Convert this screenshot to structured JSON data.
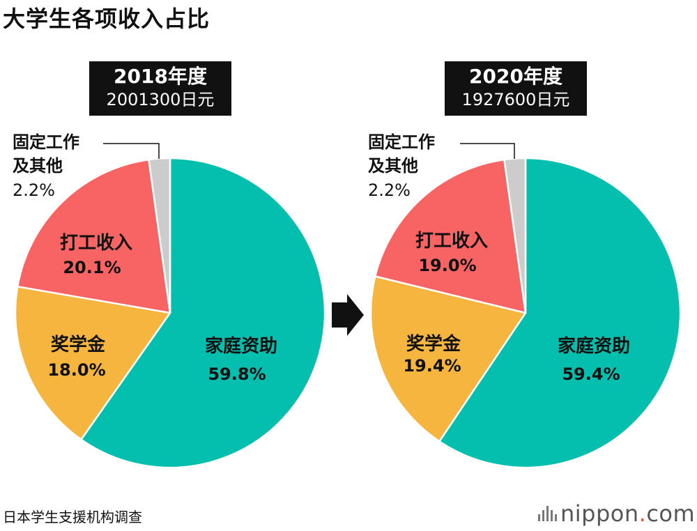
{
  "title": "大学生各项收入占比",
  "source": "日本学生支援机构调查",
  "brand": {
    "name": "nippon",
    "dot": ".",
    "tld": "com"
  },
  "colors": {
    "family_support": "#05bfae",
    "scholarship": "#f5b53f",
    "part_time": "#f86363",
    "other": "#cccccc",
    "box_bg": "#111111",
    "text": "#111111"
  },
  "arrow_icon": "right-arrow-icon",
  "chart_data": [
    {
      "type": "pie",
      "year": "2018年度",
      "total": "2001300日元",
      "slices": [
        {
          "label": "家庭资助",
          "value": 59.8,
          "pct_text": "59.8%",
          "color": "#05bfae"
        },
        {
          "label": "奖学金",
          "value": 18.0,
          "pct_text": "18.0%",
          "color": "#f5b53f"
        },
        {
          "label": "打工收入",
          "value": 20.1,
          "pct_text": "20.1%",
          "color": "#f86363"
        },
        {
          "label_line1": "固定工作",
          "label_line2": "及其他",
          "value": 2.2,
          "pct_text": "2.2%",
          "color": "#cccccc"
        }
      ]
    },
    {
      "type": "pie",
      "year": "2020年度",
      "total": "1927600日元",
      "slices": [
        {
          "label": "家庭资助",
          "value": 59.4,
          "pct_text": "59.4%",
          "color": "#05bfae"
        },
        {
          "label": "奖学金",
          "value": 19.4,
          "pct_text": "19.4%",
          "color": "#f5b53f"
        },
        {
          "label": "打工收入",
          "value": 19.0,
          "pct_text": "19.0%",
          "color": "#f86363"
        },
        {
          "label_line1": "固定工作",
          "label_line2": "及其他",
          "value": 2.2,
          "pct_text": "2.2%",
          "color": "#cccccc"
        }
      ]
    }
  ]
}
